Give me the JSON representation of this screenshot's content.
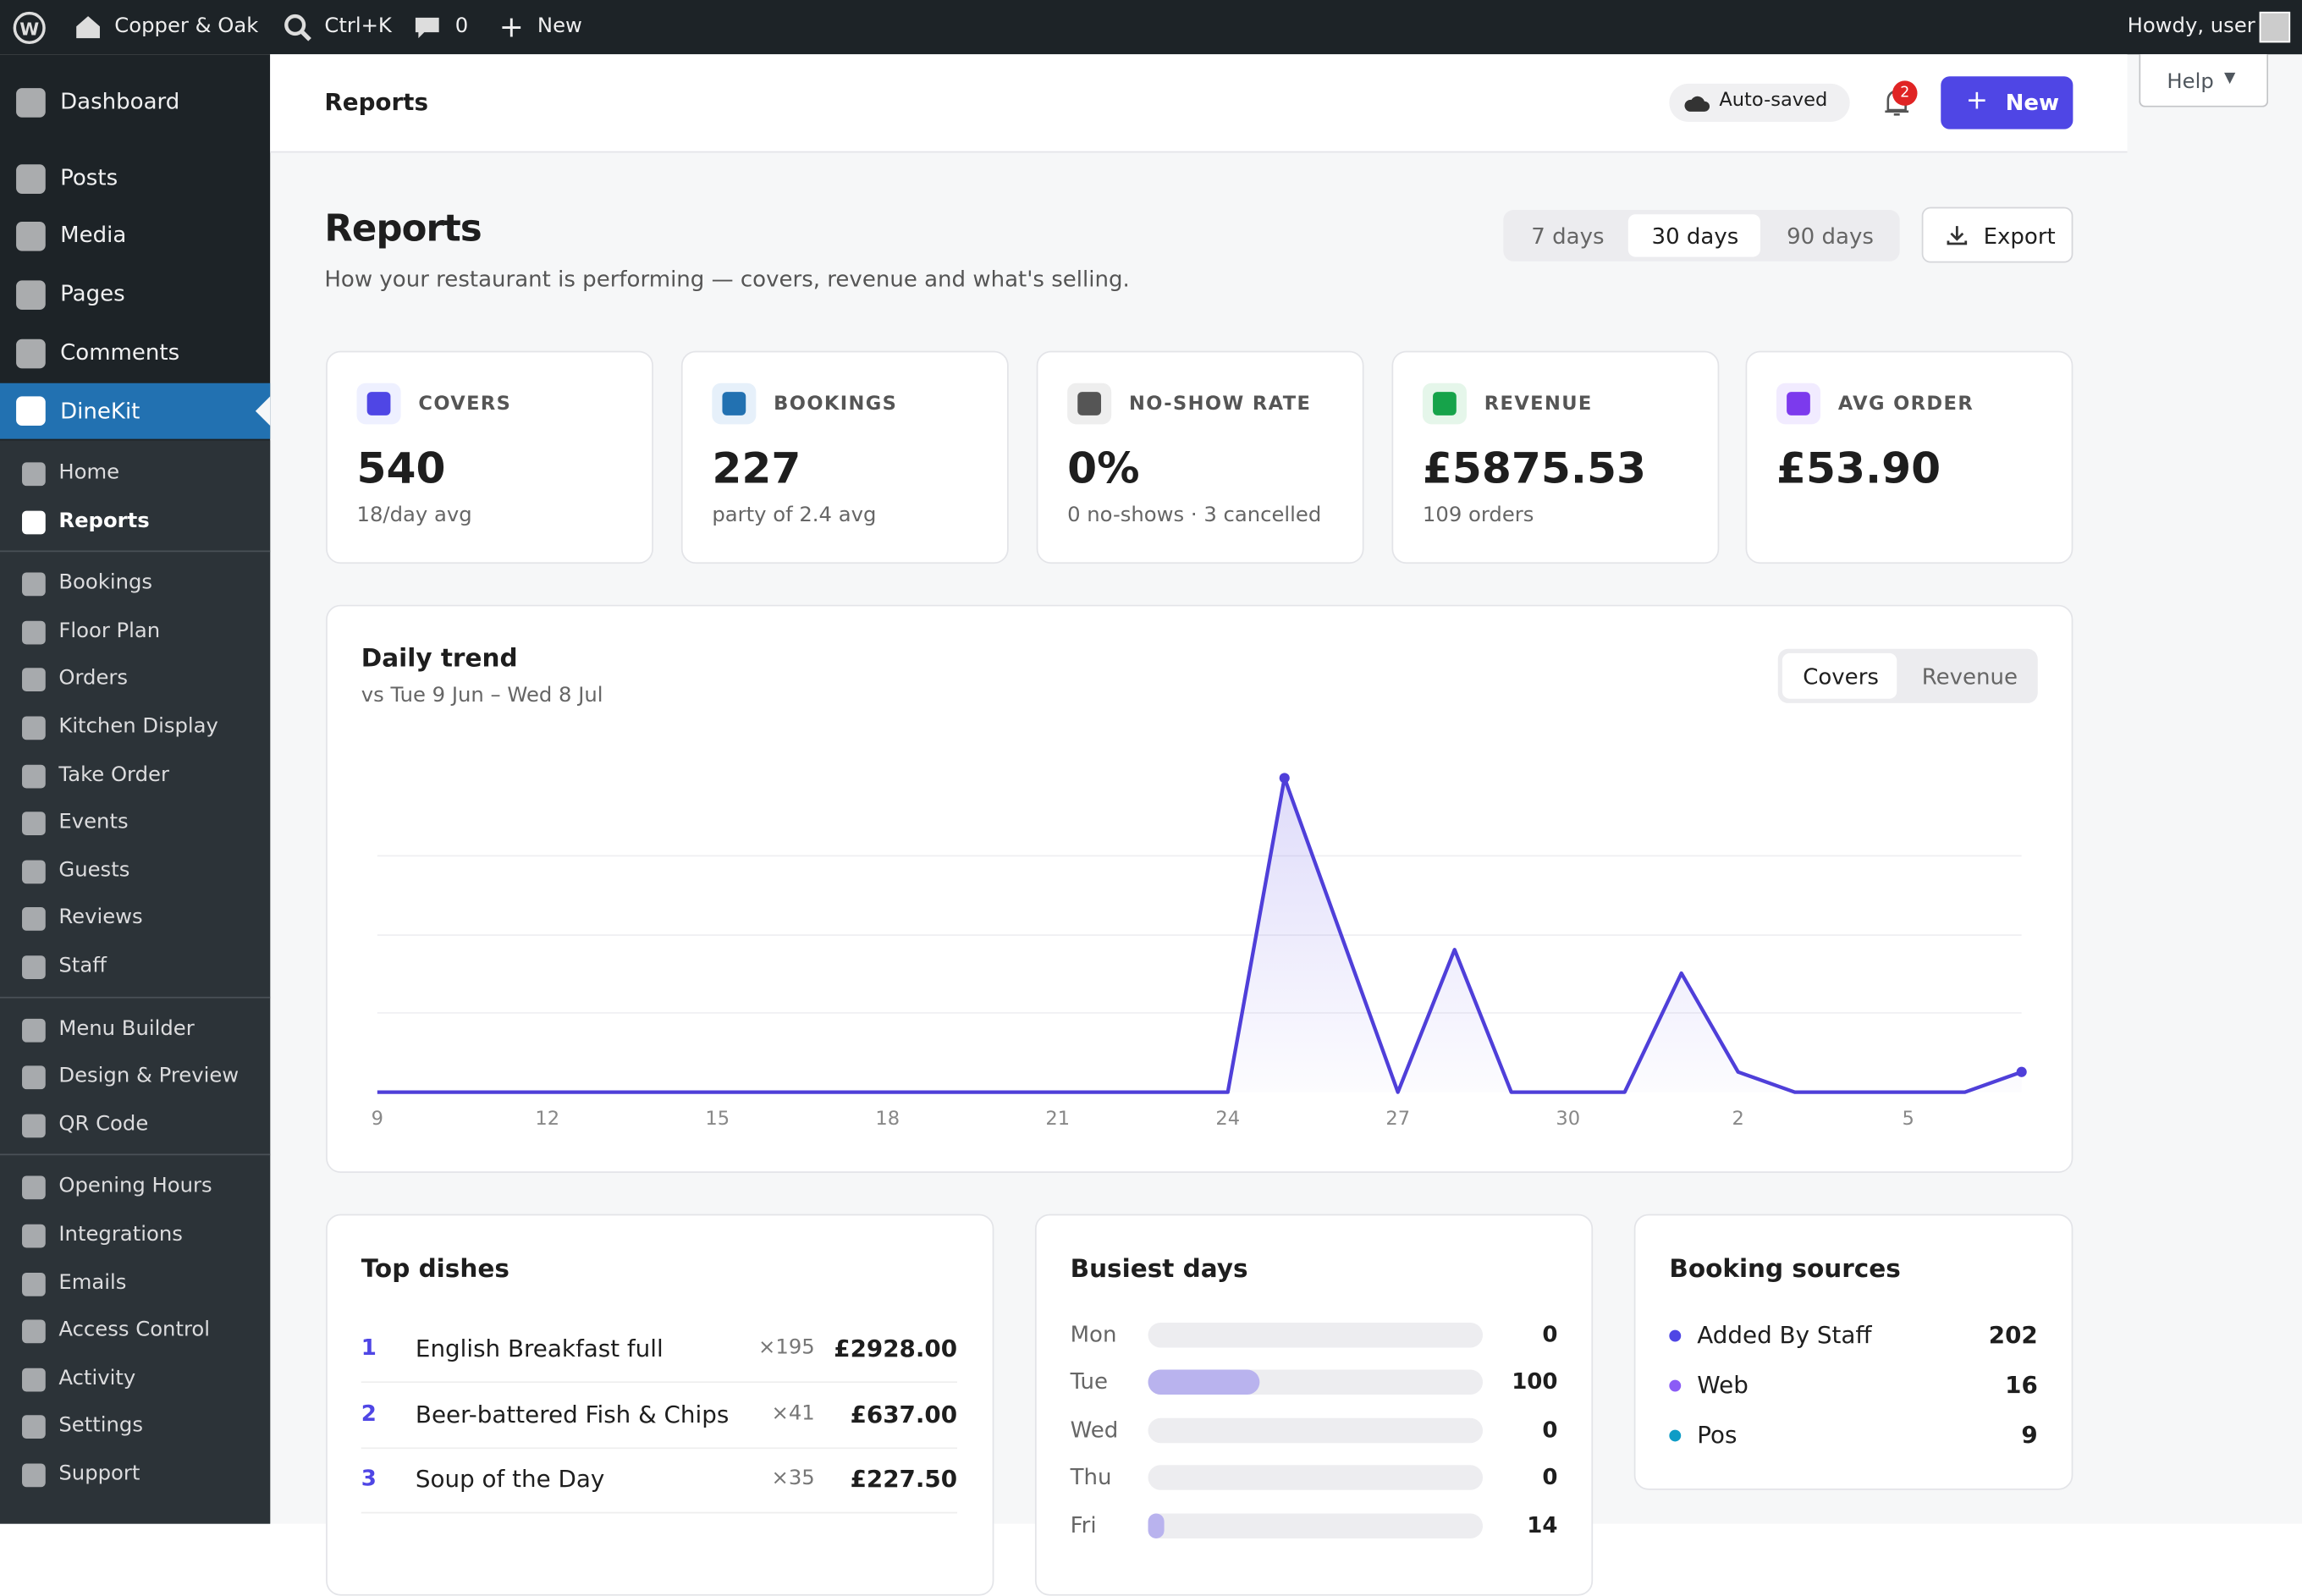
{
  "topbar": {
    "site": "Copper & Oak",
    "search": "Ctrl+K",
    "comments": "0",
    "new": "New",
    "greeting": "Howdy, user"
  },
  "sidebar": {
    "main": [
      "Dashboard",
      "Posts",
      "Media",
      "Pages",
      "Comments"
    ],
    "active": "DineKit",
    "groups": [
      [
        "Home",
        "Reports"
      ],
      [
        "Bookings",
        "Floor Plan",
        "Orders",
        "Kitchen Display",
        "Take Order",
        "Events",
        "Guests",
        "Reviews",
        "Staff"
      ],
      [
        "Menu Builder",
        "Design & Preview",
        "QR Code"
      ],
      [
        "Opening Hours",
        "Integrations",
        "Emails",
        "Access Control",
        "Activity",
        "Settings",
        "Support"
      ]
    ]
  },
  "header": {
    "title": "Reports",
    "status": "Auto-saved",
    "notifications": "2",
    "new": "New",
    "help": "Help"
  },
  "page": {
    "title": "Reports",
    "subtitle": "How your restaurant is performing — covers, revenue and what's selling.",
    "ranges": [
      "7 days",
      "30 days",
      "90 days"
    ],
    "export": "Export"
  },
  "kpis": [
    {
      "label": "COVERS",
      "value": "540",
      "sub": "18/day avg"
    },
    {
      "label": "BOOKINGS",
      "value": "227",
      "sub": "party of 2.4 avg"
    },
    {
      "label": "NO-SHOW RATE",
      "value": "0%",
      "sub": "0 no-shows · 3 cancelled"
    },
    {
      "label": "REVENUE",
      "value": "£5875.53",
      "sub": "109 orders"
    },
    {
      "label": "AVG ORDER",
      "value": "£53.90"
    }
  ],
  "trend": {
    "type": "line",
    "title": "Daily trend",
    "subtitle": "vs Tue 9 Jun – Wed 8 Jul",
    "toggles": [
      "Covers",
      "Revenue"
    ],
    "categories": [
      "9",
      null,
      null,
      "12",
      null,
      null,
      "15",
      null,
      null,
      "18",
      null,
      null,
      "21",
      null,
      null,
      "24",
      null,
      null,
      "27",
      null,
      null,
      "30",
      null,
      null,
      "2",
      null,
      null,
      "5",
      null,
      null
    ],
    "values": [
      0,
      0,
      0,
      0,
      0,
      0,
      0,
      0,
      0,
      0,
      0,
      0,
      0,
      0,
      0,
      0,
      280,
      140,
      0,
      127,
      0,
      0,
      0,
      106,
      18,
      0,
      0,
      0,
      0,
      18
    ],
    "ylim": [
      0,
      280
    ],
    "color": "#4f3fd9"
  },
  "top_dishes": {
    "title": "Top dishes",
    "rows": [
      {
        "rank": "1",
        "name": "English Breakfast full",
        "qty": "×195",
        "revenue": "£2928.00"
      },
      {
        "rank": "2",
        "name": "Beer-battered Fish & Chips",
        "qty": "×41",
        "revenue": "£637.00"
      },
      {
        "rank": "3",
        "name": "Soup of the Day",
        "qty": "×35",
        "revenue": "£227.50"
      }
    ]
  },
  "busiest_days": {
    "title": "Busiest days",
    "categories": [
      "Mon",
      "Tue",
      "Wed",
      "Thu",
      "Fri"
    ],
    "values": [
      0,
      100,
      0,
      0,
      14
    ],
    "xlim": [
      0,
      300
    ],
    "color": "#b9b3ee"
  },
  "booking_sources": {
    "title": "Booking sources",
    "rows": [
      {
        "name": "Added By Staff",
        "value": 202,
        "color": "#4f46e5"
      },
      {
        "name": "Web",
        "value": 16,
        "color": "#8b5cf6"
      },
      {
        "name": "Pos",
        "value": 9,
        "color": "#0e9cc6"
      }
    ]
  }
}
